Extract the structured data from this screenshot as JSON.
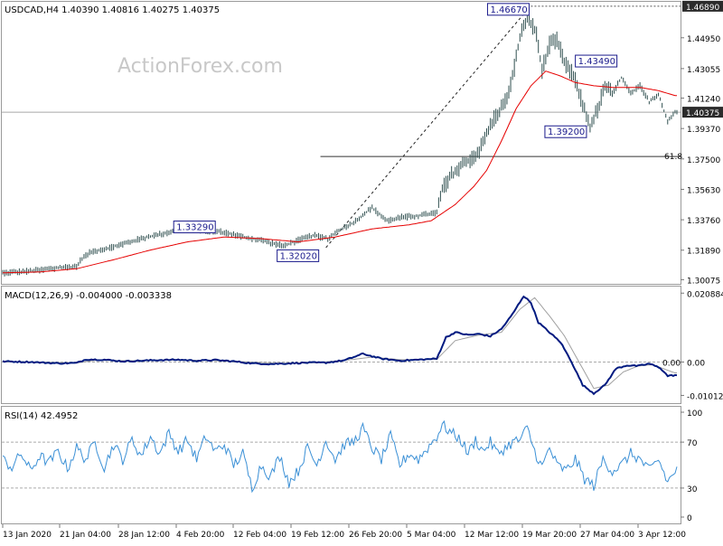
{
  "chart_data": {
    "type": "line",
    "symbol": "USDCAD,H4",
    "ohlc_header": "USDCAD,H4  1.40390 1.40816 1.40275 1.40375",
    "watermark": "ActionForex.com",
    "x_tick_labels": [
      "13 Jan 2020",
      "21 Jan 04:00",
      "28 Jan 12:00",
      "4 Feb 20:00",
      "12 Feb 04:00",
      "19 Feb 12:00",
      "26 Feb 20:00",
      "5 Mar 04:00",
      "12 Mar 12:00",
      "19 Mar 20:00",
      "27 Mar 04:00",
      "3 Apr 12:00"
    ],
    "main": {
      "ylim": [
        1.29875,
        1.4705
      ],
      "y_ticks": [
        "1.46890",
        "1.44950",
        "1.43055",
        "1.41240",
        "1.39370",
        "1.37500",
        "1.35630",
        "1.33760",
        "1.31890",
        "1.30075"
      ],
      "current_price_label": "1.40375",
      "current_price": 1.40375,
      "top_price_label": "1.46890",
      "fib_label": "61.8",
      "fib_level": 1.3765,
      "price_labels": [
        {
          "text": "1.46670",
          "value": 1.4667,
          "bar": 284
        },
        {
          "text": "1.43490",
          "value": 1.4349,
          "bar": 311
        },
        {
          "text": "1.39200",
          "value": 1.392,
          "bar": 318
        },
        {
          "text": "1.33290",
          "value": 1.3329,
          "bar": 96
        },
        {
          "text": "1.32020",
          "value": 1.3202,
          "bar": 152
        }
      ],
      "trendline": [
        {
          "bar": 175,
          "value": 1.3205
        },
        {
          "bar": 284,
          "value": 1.4667
        }
      ],
      "price_series_name": "price",
      "price_anchors": [
        [
          0,
          1.305
        ],
        [
          15,
          1.306
        ],
        [
          30,
          1.308
        ],
        [
          40,
          1.309
        ],
        [
          43,
          1.314
        ],
        [
          48,
          1.318
        ],
        [
          60,
          1.321
        ],
        [
          75,
          1.326
        ],
        [
          90,
          1.33
        ],
        [
          96,
          1.3329
        ],
        [
          110,
          1.331
        ],
        [
          120,
          1.33
        ],
        [
          130,
          1.327
        ],
        [
          140,
          1.325
        ],
        [
          152,
          1.3215
        ],
        [
          160,
          1.325
        ],
        [
          168,
          1.328
        ],
        [
          176,
          1.326
        ],
        [
          182,
          1.331
        ],
        [
          190,
          1.336
        ],
        [
          200,
          1.345
        ],
        [
          208,
          1.337
        ],
        [
          215,
          1.339
        ],
        [
          225,
          1.34
        ],
        [
          235,
          1.342
        ],
        [
          238,
          1.356
        ],
        [
          243,
          1.365
        ],
        [
          250,
          1.372
        ],
        [
          258,
          1.38
        ],
        [
          266,
          1.4
        ],
        [
          272,
          1.41
        ],
        [
          276,
          1.425
        ],
        [
          280,
          1.45
        ],
        [
          284,
          1.462
        ],
        [
          289,
          1.452
        ],
        [
          292,
          1.43
        ],
        [
          296,
          1.445
        ],
        [
          300,
          1.448
        ],
        [
          304,
          1.435
        ],
        [
          308,
          1.428
        ],
        [
          311,
          1.42
        ],
        [
          315,
          1.405
        ],
        [
          318,
          1.395
        ],
        [
          322,
          1.405
        ],
        [
          326,
          1.42
        ],
        [
          330,
          1.415
        ],
        [
          335,
          1.425
        ],
        [
          340,
          1.415
        ],
        [
          345,
          1.42
        ],
        [
          350,
          1.41
        ],
        [
          355,
          1.415
        ],
        [
          360,
          1.398
        ],
        [
          364,
          1.404
        ]
      ],
      "ma_series_name": "moving average",
      "ma_anchors": [
        [
          0,
          1.305
        ],
        [
          20,
          1.3055
        ],
        [
          40,
          1.3075
        ],
        [
          60,
          1.313
        ],
        [
          80,
          1.319
        ],
        [
          100,
          1.324
        ],
        [
          120,
          1.327
        ],
        [
          140,
          1.326
        ],
        [
          160,
          1.324
        ],
        [
          180,
          1.327
        ],
        [
          200,
          1.332
        ],
        [
          220,
          1.3345
        ],
        [
          232,
          1.337
        ],
        [
          245,
          1.347
        ],
        [
          255,
          1.358
        ],
        [
          262,
          1.368
        ],
        [
          270,
          1.386
        ],
        [
          278,
          1.406
        ],
        [
          286,
          1.42
        ],
        [
          294,
          1.429
        ],
        [
          302,
          1.426
        ],
        [
          310,
          1.422
        ],
        [
          320,
          1.42
        ],
        [
          330,
          1.419
        ],
        [
          345,
          1.419
        ],
        [
          355,
          1.417
        ],
        [
          364,
          1.414
        ]
      ]
    },
    "macd": {
      "label": "MACD(12,26,9) -0.004000 -0.003338",
      "ylim": [
        -0.0122,
        0.0226
      ],
      "y_ticks": [
        "0.020884",
        "0.00",
        "-0.010121"
      ],
      "zero_overlay_label": "0.00",
      "macd_series_name": "macd",
      "signal_series_name": "signal",
      "macd_anchors": [
        [
          0,
          0.0002
        ],
        [
          15,
          0.0
        ],
        [
          30,
          -0.0004
        ],
        [
          40,
          -0.0003
        ],
        [
          45,
          0.0008
        ],
        [
          55,
          0.0007
        ],
        [
          65,
          0.0002
        ],
        [
          75,
          0.0004
        ],
        [
          85,
          0.0006
        ],
        [
          95,
          0.0007
        ],
        [
          105,
          0.0004
        ],
        [
          115,
          0.0006
        ],
        [
          125,
          0.0002
        ],
        [
          135,
          -0.0004
        ],
        [
          145,
          -0.0006
        ],
        [
          155,
          -0.0004
        ],
        [
          165,
          -0.0002
        ],
        [
          175,
          -0.0002
        ],
        [
          185,
          0.0005
        ],
        [
          195,
          0.0025
        ],
        [
          205,
          0.001
        ],
        [
          215,
          0.0004
        ],
        [
          225,
          0.0007
        ],
        [
          235,
          0.001
        ],
        [
          240,
          0.0075
        ],
        [
          245,
          0.009
        ],
        [
          252,
          0.0082
        ],
        [
          258,
          0.0085
        ],
        [
          264,
          0.0078
        ],
        [
          270,
          0.01
        ],
        [
          276,
          0.0145
        ],
        [
          282,
          0.02
        ],
        [
          286,
          0.018
        ],
        [
          290,
          0.012
        ],
        [
          296,
          0.009
        ],
        [
          302,
          0.006
        ],
        [
          308,
          0.0
        ],
        [
          314,
          -0.007
        ],
        [
          320,
          -0.0095
        ],
        [
          326,
          -0.007
        ],
        [
          332,
          -0.002
        ],
        [
          338,
          -0.001
        ],
        [
          344,
          -0.0012
        ],
        [
          350,
          -0.0005
        ],
        [
          356,
          -0.0018
        ],
        [
          360,
          -0.0042
        ],
        [
          364,
          -0.004
        ]
      ],
      "signal_anchors": [
        [
          0,
          0.0002
        ],
        [
          20,
          0.0
        ],
        [
          40,
          -0.0003
        ],
        [
          50,
          0.0005
        ],
        [
          70,
          0.0004
        ],
        [
          90,
          0.0006
        ],
        [
          110,
          0.0005
        ],
        [
          130,
          0.0001
        ],
        [
          150,
          -0.0004
        ],
        [
          170,
          -0.0002
        ],
        [
          190,
          0.0008
        ],
        [
          200,
          0.0015
        ],
        [
          215,
          0.0007
        ],
        [
          235,
          0.0008
        ],
        [
          245,
          0.0065
        ],
        [
          258,
          0.0082
        ],
        [
          270,
          0.009
        ],
        [
          280,
          0.016
        ],
        [
          288,
          0.0195
        ],
        [
          296,
          0.014
        ],
        [
          304,
          0.008
        ],
        [
          312,
          0.0
        ],
        [
          320,
          -0.008
        ],
        [
          328,
          -0.007
        ],
        [
          336,
          -0.003
        ],
        [
          344,
          -0.0012
        ],
        [
          352,
          -0.0008
        ],
        [
          360,
          -0.0025
        ],
        [
          364,
          -0.0033
        ]
      ]
    },
    "rsi": {
      "label": "RSI(14) 42.4952",
      "ylim": [
        0,
        100
      ],
      "y_ticks": [
        "100",
        "70",
        "30",
        "0"
      ],
      "levels": [
        70,
        30
      ],
      "series_name": "rsi",
      "rsi_anchors": [
        [
          0,
          55
        ],
        [
          5,
          48
        ],
        [
          10,
          60
        ],
        [
          15,
          45
        ],
        [
          20,
          58
        ],
        [
          25,
          52
        ],
        [
          30,
          62
        ],
        [
          35,
          47
        ],
        [
          40,
          65
        ],
        [
          45,
          55
        ],
        [
          50,
          70
        ],
        [
          55,
          48
        ],
        [
          60,
          68
        ],
        [
          65,
          55
        ],
        [
          70,
          72
        ],
        [
          75,
          58
        ],
        [
          80,
          75
        ],
        [
          85,
          60
        ],
        [
          90,
          78
        ],
        [
          95,
          62
        ],
        [
          100,
          72
        ],
        [
          105,
          55
        ],
        [
          110,
          75
        ],
        [
          115,
          62
        ],
        [
          120,
          68
        ],
        [
          125,
          50
        ],
        [
          130,
          60
        ],
        [
          135,
          30
        ],
        [
          140,
          50
        ],
        [
          145,
          40
        ],
        [
          150,
          58
        ],
        [
          155,
          35
        ],
        [
          160,
          45
        ],
        [
          165,
          65
        ],
        [
          170,
          50
        ],
        [
          175,
          72
        ],
        [
          180,
          55
        ],
        [
          185,
          68
        ],
        [
          190,
          70
        ],
        [
          195,
          82
        ],
        [
          200,
          65
        ],
        [
          205,
          55
        ],
        [
          210,
          75
        ],
        [
          215,
          50
        ],
        [
          220,
          60
        ],
        [
          225,
          55
        ],
        [
          230,
          65
        ],
        [
          235,
          75
        ],
        [
          238,
          85
        ],
        [
          243,
          78
        ],
        [
          248,
          72
        ],
        [
          252,
          60
        ],
        [
          256,
          72
        ],
        [
          260,
          62
        ],
        [
          264,
          70
        ],
        [
          268,
          60
        ],
        [
          272,
          65
        ],
        [
          276,
          70
        ],
        [
          280,
          72
        ],
        [
          284,
          82
        ],
        [
          288,
          62
        ],
        [
          292,
          48
        ],
        [
          296,
          65
        ],
        [
          300,
          50
        ],
        [
          305,
          45
        ],
        [
          310,
          55
        ],
        [
          315,
          38
        ],
        [
          320,
          32
        ],
        [
          325,
          55
        ],
        [
          330,
          45
        ],
        [
          335,
          50
        ],
        [
          340,
          60
        ],
        [
          345,
          55
        ],
        [
          350,
          45
        ],
        [
          355,
          55
        ],
        [
          360,
          35
        ],
        [
          364,
          45
        ]
      ]
    },
    "colors": {
      "price": "#2f4f4f",
      "moving_average": "#e60000",
      "macd": "#001a80",
      "signal": "#a0a0a0",
      "rsi": "#3b90d6",
      "label_box_text": "#1a1a8c",
      "axis_label_bg": "#2b2b2b"
    },
    "grid": false,
    "legend": "none"
  }
}
